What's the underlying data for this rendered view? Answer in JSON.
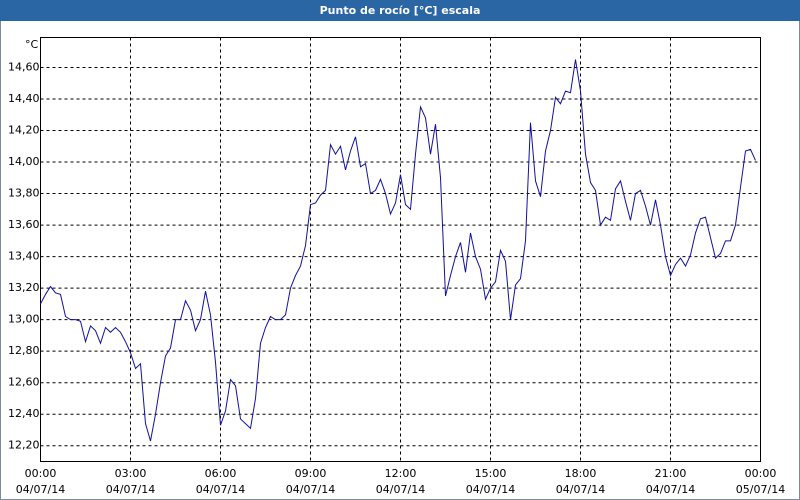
{
  "chart_data": {
    "type": "line",
    "title": "Punto de rocío [°C] escala",
    "ylabel": "°C",
    "x": [
      0,
      10,
      20,
      30,
      40,
      50,
      60,
      70,
      80,
      90,
      100,
      110,
      120,
      130,
      140,
      150,
      160,
      170,
      180,
      190,
      200,
      210,
      220,
      230,
      240,
      250,
      260,
      270,
      280,
      290,
      300,
      310,
      320,
      330,
      340,
      350,
      360,
      370,
      380,
      390,
      400,
      410,
      420,
      430,
      440,
      450,
      460,
      470,
      480,
      490,
      500,
      510,
      520,
      530,
      540,
      550,
      560,
      570,
      580,
      590,
      600,
      610,
      620,
      630,
      640,
      650,
      660,
      670,
      680,
      690,
      700,
      710,
      720,
      730,
      740,
      750,
      760,
      770,
      780,
      790,
      800,
      810,
      820,
      830,
      840,
      850,
      860,
      870,
      880,
      890,
      900,
      910,
      920,
      930,
      940,
      950,
      960,
      970,
      980,
      990,
      1000,
      1010,
      1020,
      1030,
      1040,
      1050,
      1060,
      1070,
      1080,
      1090,
      1100,
      1110,
      1120,
      1130,
      1140,
      1150,
      1160,
      1170,
      1180,
      1190,
      1200,
      1210,
      1220,
      1230,
      1240,
      1250,
      1260,
      1270,
      1280,
      1290,
      1300,
      1310,
      1320,
      1330,
      1340,
      1350,
      1360,
      1370,
      1380,
      1390,
      1400,
      1410,
      1420,
      1430
    ],
    "series": [
      {
        "color": "#1010a0",
        "values": [
          13.1,
          13.16,
          13.21,
          13.17,
          13.16,
          13.02,
          13.0,
          13.0,
          12.99,
          12.86,
          12.96,
          12.93,
          12.85,
          12.95,
          12.92,
          12.95,
          12.92,
          12.86,
          12.79,
          12.69,
          12.72,
          12.34,
          12.23,
          12.4,
          12.6,
          12.77,
          12.82,
          13.0,
          13.0,
          13.12,
          13.06,
          12.93,
          13.0,
          13.18,
          13.03,
          12.73,
          12.33,
          12.42,
          12.62,
          12.58,
          12.37,
          12.34,
          12.31,
          12.5,
          12.85,
          12.95,
          13.02,
          13.0,
          13.0,
          13.03,
          13.2,
          13.28,
          13.34,
          13.47,
          13.73,
          13.74,
          13.79,
          13.82,
          14.11,
          14.05,
          14.1,
          13.95,
          14.07,
          14.16,
          13.97,
          13.99,
          13.8,
          13.82,
          13.89,
          13.8,
          13.67,
          13.74,
          13.92,
          13.73,
          13.7,
          14.05,
          14.35,
          14.28,
          14.05,
          14.24,
          13.9,
          13.15,
          13.28,
          13.4,
          13.49,
          13.3,
          13.55,
          13.4,
          13.32,
          13.13,
          13.2,
          13.24,
          13.44,
          13.37,
          13.0,
          13.22,
          13.26,
          13.5,
          14.25,
          13.88,
          13.78,
          14.07,
          14.2,
          14.41,
          14.37,
          14.45,
          14.44,
          14.65,
          14.45,
          14.05,
          13.87,
          13.82,
          13.6,
          13.65,
          13.63,
          13.83,
          13.88,
          13.75,
          13.63,
          13.8,
          13.82,
          13.72,
          13.6,
          13.76,
          13.6,
          13.4,
          13.28,
          13.35,
          13.39,
          13.34,
          13.41,
          13.55,
          13.64,
          13.65,
          13.52,
          13.39,
          13.42,
          13.5,
          13.5,
          13.6,
          13.84,
          14.07,
          14.08,
          14.01
        ]
      }
    ],
    "xlim": [
      0,
      1440
    ],
    "xticks": [
      {
        "value": 0,
        "label": "00:00"
      },
      {
        "value": 180,
        "label": "03:00"
      },
      {
        "value": 360,
        "label": "06:00"
      },
      {
        "value": 540,
        "label": "09:00"
      },
      {
        "value": 720,
        "label": "12:00"
      },
      {
        "value": 900,
        "label": "15:00"
      },
      {
        "value": 1080,
        "label": "18:00"
      },
      {
        "value": 1260,
        "label": "21:00"
      },
      {
        "value": 1440,
        "label": "00:00"
      }
    ],
    "xtick_dates": [
      "04/07/14",
      "04/07/14",
      "04/07/14",
      "04/07/14",
      "04/07/14",
      "04/07/14",
      "04/07/14",
      "04/07/14",
      "05/07/14"
    ],
    "ylim": [
      12.1,
      14.79
    ],
    "yticks": [
      {
        "value": 12.2,
        "label": "12,20"
      },
      {
        "value": 12.4,
        "label": "12,40"
      },
      {
        "value": 12.6,
        "label": "12,60"
      },
      {
        "value": 12.8,
        "label": "12,80"
      },
      {
        "value": 13.0,
        "label": "13,00"
      },
      {
        "value": 13.2,
        "label": "13,20"
      },
      {
        "value": 13.4,
        "label": "13,40"
      },
      {
        "value": 13.6,
        "label": "13,60"
      },
      {
        "value": 13.8,
        "label": "13,80"
      },
      {
        "value": 14.0,
        "label": "14,00"
      },
      {
        "value": 14.2,
        "label": "14,20"
      },
      {
        "value": 14.4,
        "label": "14,40"
      },
      {
        "value": 14.6,
        "label": "14,60"
      }
    ],
    "grid": true
  }
}
